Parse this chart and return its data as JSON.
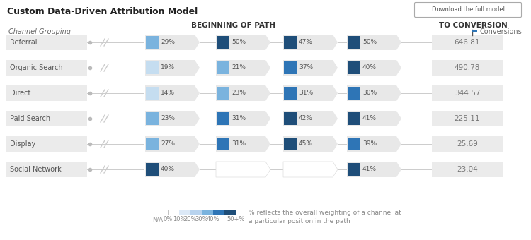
{
  "title": "Custom Data-Driven Attribution Model",
  "button_text": "Download the full model",
  "header_left": "BEGINNING OF PATH",
  "header_right": "TO CONVERSION",
  "col_label": "Channel Grouping",
  "legend_label": "Conversions",
  "footnote": "% reflects the overall weighting of a channel at\na particular position in the path",
  "channels": [
    "Referral",
    "Organic Search",
    "Direct",
    "Paid Search",
    "Display",
    "Social Network"
  ],
  "conversions": [
    646.81,
    490.78,
    344.57,
    225.11,
    25.69,
    23.04
  ],
  "data": [
    [
      29,
      50,
      47,
      50
    ],
    [
      19,
      21,
      37,
      40
    ],
    [
      14,
      23,
      31,
      30
    ],
    [
      23,
      31,
      42,
      41
    ],
    [
      27,
      31,
      45,
      39
    ],
    [
      40,
      null,
      null,
      41
    ]
  ],
  "gradient_colors": [
    "#ffffff",
    "#dce9f7",
    "#b8d3ee",
    "#7ab3de",
    "#2e75b6",
    "#1f4e79"
  ],
  "arrow_color": "#d8d8d8",
  "cell_bg": "#ebebeb",
  "text_color": "#666666",
  "header_color": "#333333",
  "title_color": "#222222"
}
